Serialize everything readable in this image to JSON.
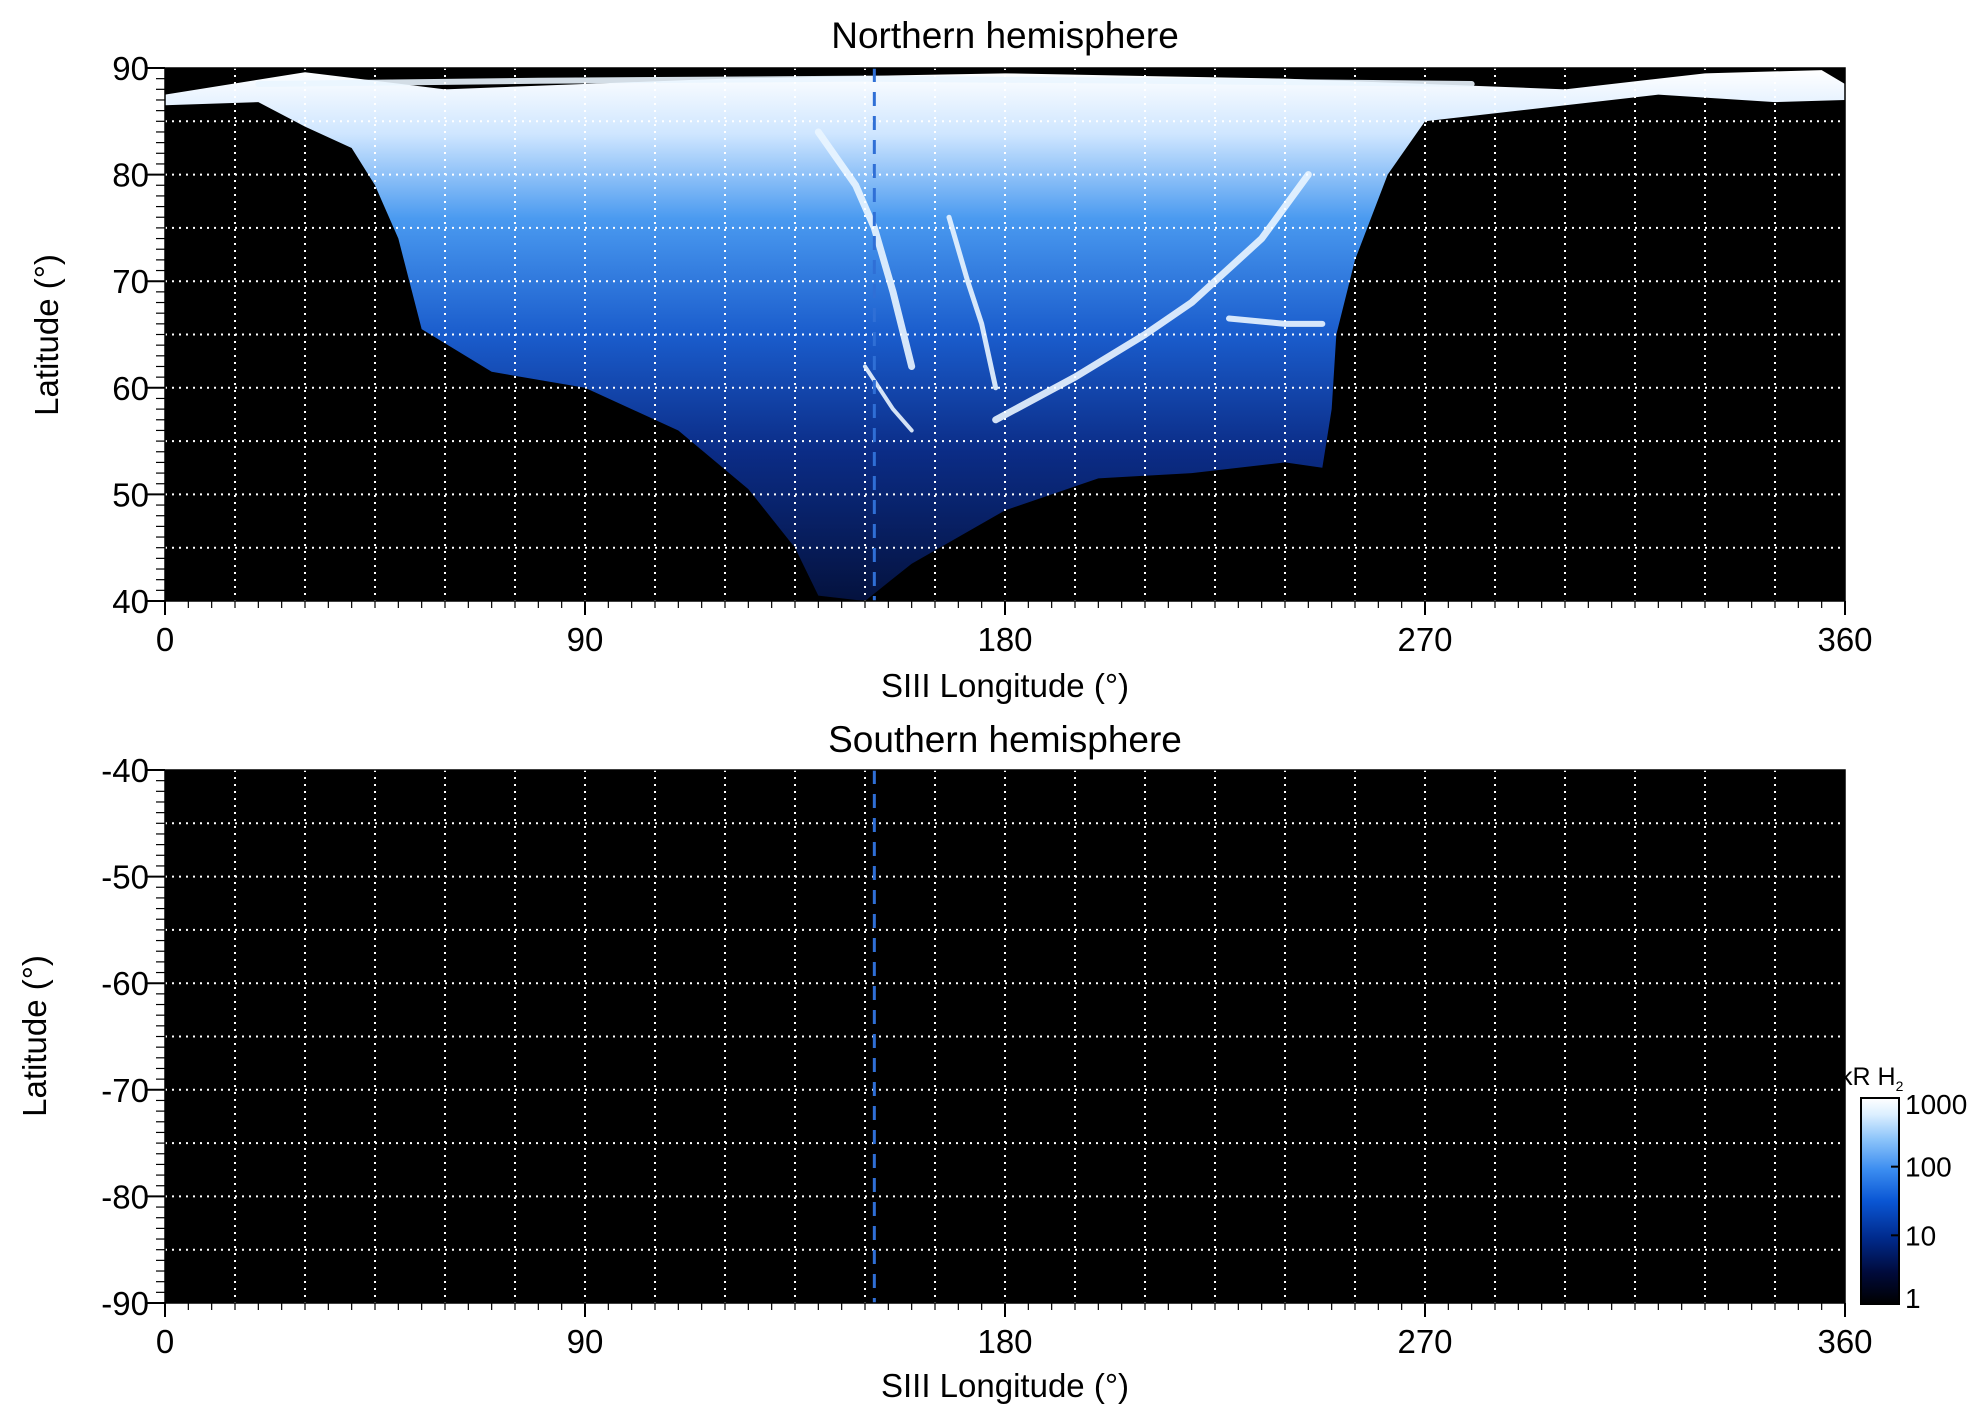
{
  "chart_data": [
    {
      "type": "heatmap",
      "title": "Northern hemisphere",
      "xlabel": "SIII Longitude (°)",
      "ylabel": "Latitude (°)",
      "xlim": [
        0,
        360
      ],
      "ylim": [
        40,
        90
      ],
      "x_ticks": [
        0,
        90,
        180,
        270,
        360
      ],
      "y_ticks": [
        40,
        50,
        60,
        70,
        80,
        90
      ],
      "grid": true,
      "grid_x_step": 15,
      "grid_y_step": 5,
      "reference_longitude": 152,
      "reference_line_color": "#2f6fd6",
      "emission_region": {
        "upper_edge": [
          [
            0,
            87.5
          ],
          [
            30,
            89.6
          ],
          [
            60,
            88
          ],
          [
            120,
            89
          ],
          [
            180,
            89.5
          ],
          [
            240,
            89
          ],
          [
            300,
            88
          ],
          [
            330,
            89.5
          ],
          [
            355,
            89.8
          ],
          [
            360,
            88.5
          ]
        ],
        "lower_edge": [
          [
            0,
            86.5
          ],
          [
            20,
            86.8
          ],
          [
            30,
            84.5
          ],
          [
            40,
            82.5
          ],
          [
            45,
            79
          ],
          [
            50,
            74
          ],
          [
            55,
            65.5
          ],
          [
            70,
            61.5
          ],
          [
            90,
            60
          ],
          [
            110,
            56
          ],
          [
            125,
            50.5
          ],
          [
            135,
            45
          ],
          [
            140,
            40.5
          ],
          [
            150,
            40
          ],
          [
            160,
            43.5
          ],
          [
            180,
            48.5
          ],
          [
            200,
            51.5
          ],
          [
            220,
            52
          ],
          [
            240,
            53
          ],
          [
            248,
            52.5
          ],
          [
            250,
            58
          ],
          [
            251,
            65
          ],
          [
            255,
            72
          ],
          [
            262,
            80
          ],
          [
            270,
            85
          ],
          [
            290,
            86
          ],
          [
            320,
            87.5
          ],
          [
            345,
            86.8
          ],
          [
            360,
            87
          ]
        ]
      },
      "bright_arcs": [
        {
          "points": [
            [
              140,
              84
            ],
            [
              148,
              79
            ],
            [
              152,
              75
            ],
            [
              156,
              69
            ],
            [
              160,
              62
            ]
          ]
        },
        {
          "points": [
            [
              168,
              76
            ],
            [
              172,
              70
            ],
            [
              175,
              66
            ],
            [
              178,
              60
            ]
          ]
        },
        {
          "points": [
            [
              150,
              62
            ],
            [
              156,
              58
            ],
            [
              160,
              56
            ]
          ]
        },
        {
          "points": [
            [
              178,
              57
            ],
            [
              195,
              61
            ],
            [
              210,
              65
            ],
            [
              220,
              68
            ],
            [
              235,
              74
            ],
            [
              245,
              80
            ]
          ]
        },
        {
          "points": [
            [
              228,
              66.5
            ],
            [
              240,
              66
            ],
            [
              248,
              66
            ]
          ]
        },
        {
          "points": [
            [
              20,
              88.5
            ],
            [
              80,
              88.8
            ],
            [
              150,
              89
            ],
            [
              210,
              88.8
            ],
            [
              280,
              88.5
            ]
          ]
        }
      ]
    },
    {
      "type": "heatmap",
      "title": "Southern hemisphere",
      "xlabel": "SIII Longitude (°)",
      "ylabel": "Latitude (°)",
      "xlim": [
        0,
        360
      ],
      "ylim": [
        -90,
        -40
      ],
      "x_ticks": [
        0,
        90,
        180,
        270,
        360
      ],
      "y_ticks": [
        -40,
        -50,
        -60,
        -70,
        -80,
        -90
      ],
      "grid": true,
      "grid_x_step": 15,
      "grid_y_step": 5,
      "reference_longitude": 152,
      "reference_line_color": "#2f6fd6"
    }
  ],
  "colorbar": {
    "title": "kR H",
    "title_subscript": "2",
    "scale": "log",
    "ticks": [
      "1000",
      "100",
      "10",
      "1"
    ],
    "tick_values": [
      1000,
      100,
      10,
      1
    ],
    "range": [
      1,
      1000
    ],
    "colors": [
      "#000000",
      "#000a3a",
      "#002a8c",
      "#0a56d4",
      "#3a8cf0",
      "#8cc4fa",
      "#dcefff",
      "#ffffff"
    ]
  }
}
